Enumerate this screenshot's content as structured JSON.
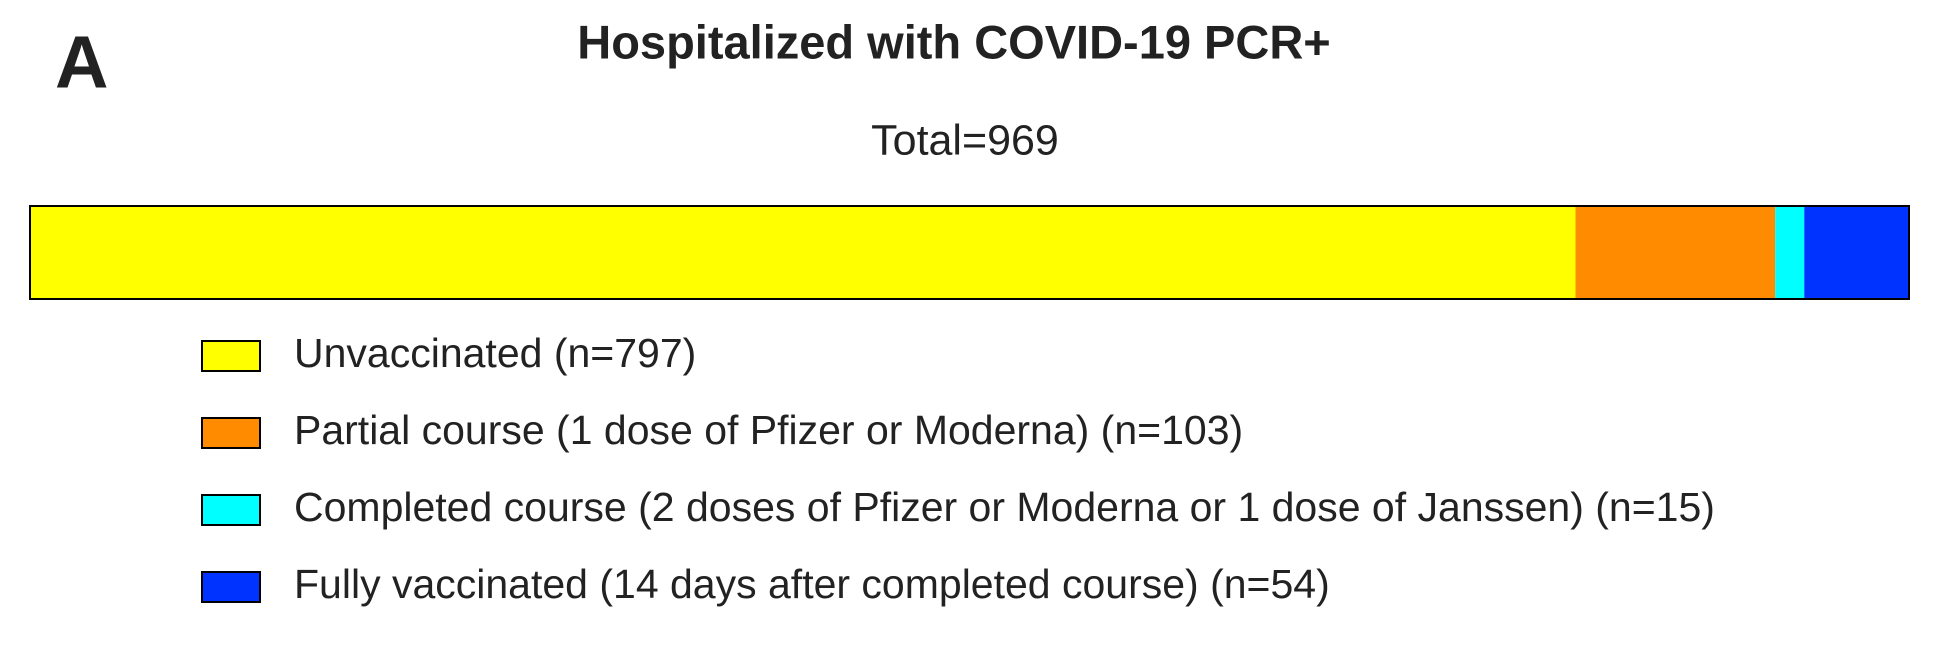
{
  "chart_data": {
    "type": "stacked-bar",
    "orientation": "horizontal",
    "panel_label": "A",
    "title": "Hospitalized with COVID-19 PCR+",
    "subtitle": "Total=969",
    "xlim": [
      0,
      969
    ],
    "series": [
      {
        "name": "Unvaccinated (n=797)",
        "color": "#ffff00",
        "values": [
          797
        ]
      },
      {
        "name": "Partial course (1 dose of Pfizer or Moderna) (n=103)",
        "color": "#ff8c00",
        "values": [
          103
        ]
      },
      {
        "name": "Completed course (2 doses of Pfizer or Moderna or 1 dose of Janssen) (n=15)",
        "color": "#00ffff",
        "values": [
          15
        ]
      },
      {
        "name": "Fully vaccinated (14 days after completed course) (n=54)",
        "color": "#0033ff",
        "values": [
          54
        ]
      }
    ]
  }
}
